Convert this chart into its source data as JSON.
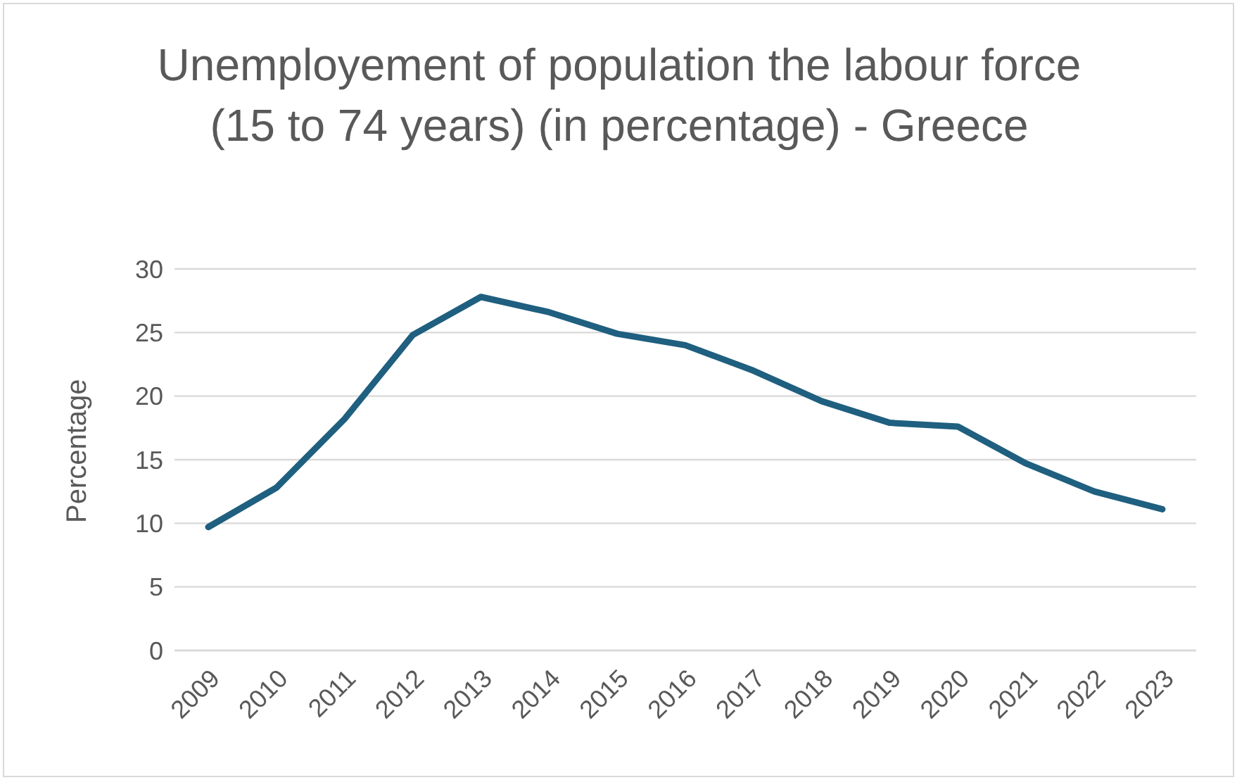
{
  "chart_data": {
    "type": "line",
    "title": "Unemployement of population the labour force (15 to 74 years) (in percentage) - Greece",
    "ylabel": "Percentage",
    "categories": [
      "2009",
      "2010",
      "2011",
      "2012",
      "2013",
      "2014",
      "2015",
      "2016",
      "2017",
      "2018",
      "2019",
      "2020",
      "2021",
      "2022",
      "2023"
    ],
    "series": [
      {
        "color": "#1f5f7f",
        "values": [
          9.7,
          12.8,
          18.2,
          24.8,
          27.8,
          26.6,
          24.9,
          24.0,
          22.0,
          19.6,
          17.9,
          17.6,
          14.7,
          12.5,
          11.1
        ]
      }
    ],
    "ylim": [
      0,
      30
    ],
    "yticks": [
      0,
      5,
      10,
      15,
      20,
      25,
      30
    ],
    "grid": "y",
    "legend": false,
    "marker": "none",
    "line_style": "solid"
  }
}
